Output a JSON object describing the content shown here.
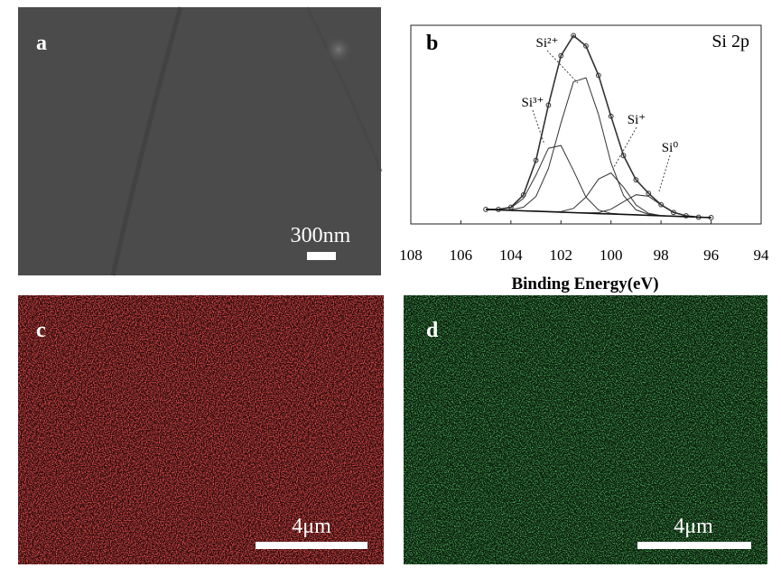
{
  "panels": [
    {
      "label": "a",
      "scale_bar": "300nm"
    },
    {
      "label": "b"
    },
    {
      "label": "c",
      "scale_bar": "4μm"
    },
    {
      "label": "d",
      "scale_bar": "4μm"
    }
  ],
  "chart_data": {
    "type": "line",
    "annotation": "Si 2p",
    "xlabel": "Binding Energy(eV)",
    "xlim": [
      108,
      94
    ],
    "xticks": [
      108,
      106,
      104,
      102,
      100,
      98,
      96,
      94
    ],
    "ylim": [
      0,
      100
    ],
    "x": [
      105,
      104.5,
      104,
      103.5,
      103,
      102.5,
      102,
      101.5,
      101,
      100.5,
      100,
      99.5,
      99,
      98.5,
      98,
      97.5,
      97,
      96.5,
      96
    ],
    "series": [
      {
        "color": "#333333",
        "values": [
          7.3,
          7.3,
          8.4,
          14.6,
          32.0,
          59.8,
          84.7,
          94.8,
          89.6,
          74.8,
          54.2,
          34.4,
          22.2,
          15.4,
          9.7,
          5.8,
          4.1,
          3.4,
          3.2
        ]
      },
      {
        "name": "Si³⁺",
        "color": "#333333",
        "values": [
          7.3,
          7.3,
          8.1,
          12.8,
          24.6,
          38.1,
          39.5,
          26.9,
          13.5,
          7.0,
          5.3,
          4.8,
          4.6,
          4.3,
          4.1,
          3.9,
          3.7,
          3.4,
          3.2
        ]
      },
      {
        "name": "Si²⁺",
        "color": "#333333",
        "values": [
          7.3,
          7.1,
          7.1,
          8.4,
          13.8,
          27.9,
          50.8,
          71.5,
          73.6,
          55.1,
          30.8,
          14.3,
          7.1,
          4.8,
          4.2,
          3.9,
          3.7,
          3.4,
          3.2
        ]
      },
      {
        "name": "Si⁺",
        "color": "#333333",
        "values": [
          7.3,
          7.1,
          6.8,
          6.6,
          6.4,
          6.2,
          6.2,
          7.8,
          13.5,
          22.6,
          25.7,
          18.5,
          9.6,
          5.3,
          4.2,
          3.9,
          3.7,
          3.4,
          3.2
        ]
      },
      {
        "name": "Si⁰",
        "color": "#333333",
        "values": [
          7.3,
          7.1,
          6.8,
          6.6,
          6.4,
          6.2,
          5.9,
          5.7,
          5.5,
          5.7,
          7.4,
          11.2,
          14.7,
          13.9,
          9.6,
          5.8,
          4.1,
          3.4,
          3.2
        ]
      },
      {
        "color": "#111111",
        "values": [
          7.3,
          7.1,
          6.8,
          6.6,
          6.4,
          6.2,
          5.9,
          5.7,
          5.5,
          5.2,
          5.0,
          4.8,
          4.6,
          4.3,
          4.1,
          3.9,
          3.7,
          3.4,
          3.2
        ]
      }
    ]
  }
}
